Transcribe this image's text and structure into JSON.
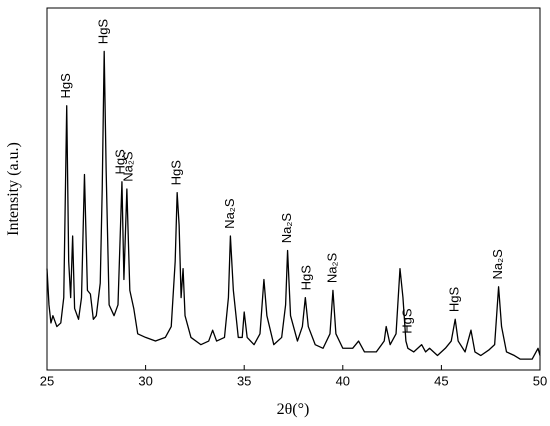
{
  "chart_data": {
    "type": "line",
    "x_label": "2θ(°)",
    "y_label": "Intensity (a.u.)",
    "xlim": [
      25,
      50
    ],
    "xticks": [
      25,
      30,
      35,
      40,
      45,
      50
    ],
    "ylim": [
      0,
      100
    ],
    "color": "#000000",
    "x": [
      25.0,
      25.1,
      25.2,
      25.3,
      25.5,
      25.7,
      25.85,
      26.0,
      26.1,
      26.2,
      26.3,
      26.4,
      26.6,
      26.75,
      26.9,
      27.05,
      27.2,
      27.35,
      27.5,
      27.7,
      27.8,
      27.9,
      28.0,
      28.15,
      28.4,
      28.6,
      28.8,
      28.9,
      29.05,
      29.2,
      29.4,
      29.6,
      30.0,
      30.5,
      31.0,
      31.3,
      31.5,
      31.6,
      31.7,
      31.8,
      31.9,
      32.0,
      32.3,
      32.8,
      33.2,
      33.4,
      33.6,
      34.0,
      34.2,
      34.3,
      34.45,
      34.7,
      34.9,
      35.0,
      35.15,
      35.5,
      35.8,
      36.0,
      36.15,
      36.5,
      36.9,
      37.1,
      37.2,
      37.35,
      37.7,
      37.95,
      38.1,
      38.25,
      38.6,
      39.0,
      39.35,
      39.5,
      39.65,
      40.0,
      40.5,
      40.8,
      41.1,
      41.7,
      42.1,
      42.2,
      42.4,
      42.7,
      42.9,
      43.05,
      43.2,
      43.3,
      43.6,
      44.0,
      44.2,
      44.4,
      44.8,
      45.2,
      45.5,
      45.7,
      45.85,
      46.2,
      46.5,
      46.7,
      47.0,
      47.4,
      47.7,
      47.9,
      48.05,
      48.3,
      48.7,
      49.0,
      49.3,
      49.6,
      49.9,
      50.0
    ],
    "values": [
      28,
      18,
      13,
      15,
      12,
      13,
      20,
      73,
      30,
      20,
      37,
      17,
      14,
      20,
      54,
      22,
      21,
      14,
      15,
      24,
      50,
      88,
      55,
      18,
      15,
      18,
      52,
      25,
      50,
      22,
      17,
      10,
      9,
      8,
      9,
      12,
      30,
      49,
      40,
      20,
      28,
      15,
      9,
      7,
      8,
      11,
      8,
      9,
      20,
      37,
      22,
      9,
      9,
      16,
      9,
      7,
      10,
      25,
      15,
      7,
      9,
      18,
      33,
      15,
      8,
      12,
      20,
      12,
      7,
      6,
      10,
      22,
      10,
      6,
      6,
      8,
      5,
      5,
      8,
      12,
      7,
      10,
      28,
      20,
      8,
      6,
      5,
      7,
      5,
      6,
      4,
      6,
      8,
      14,
      8,
      5,
      11,
      5,
      4,
      5.5,
      7,
      23,
      12,
      5,
      4,
      3,
      3,
      3,
      6,
      4
    ],
    "annotations": [
      {
        "text": "HgS",
        "x": 26.0,
        "y": 75
      },
      {
        "text": "HgS",
        "x": 27.9,
        "y": 90
      },
      {
        "text": "HgS",
        "x": 28.75,
        "y": 54
      },
      {
        "text": "Na₂S",
        "x": 29.15,
        "y": 52
      },
      {
        "text": "HgS",
        "x": 31.6,
        "y": 51
      },
      {
        "text": "Na₂S",
        "x": 34.3,
        "y": 39
      },
      {
        "text": "Na₂S",
        "x": 37.2,
        "y": 35
      },
      {
        "text": "HgS",
        "x": 38.2,
        "y": 22
      },
      {
        "text": "Na₂S",
        "x": 39.5,
        "y": 24
      },
      {
        "text": "HgS",
        "x": 43.3,
        "y": 10
      },
      {
        "text": "HgS",
        "x": 45.7,
        "y": 16
      },
      {
        "text": "Na₂S",
        "x": 47.9,
        "y": 25
      }
    ]
  }
}
